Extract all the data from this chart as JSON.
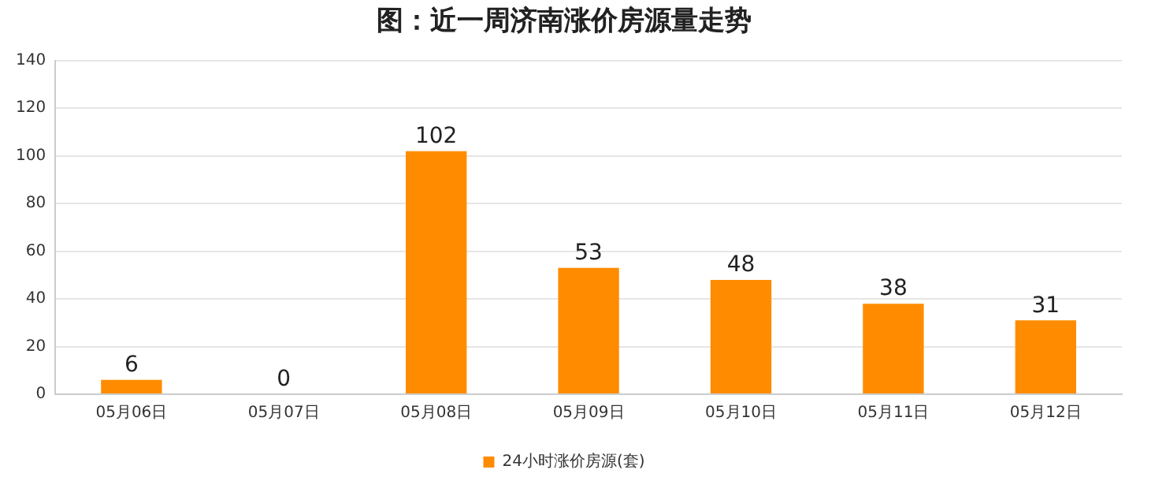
{
  "chart_data": {
    "type": "bar",
    "title": "图：近一周济南涨价房源量走势",
    "categories": [
      "05月06日",
      "05月07日",
      "05月08日",
      "05月09日",
      "05月10日",
      "05月11日",
      "05月12日"
    ],
    "series": [
      {
        "name": "24小时涨价房源(套)",
        "color": "#ff8c00",
        "values": [
          6,
          0,
          102,
          53,
          48,
          38,
          31
        ]
      }
    ],
    "ylim": [
      0,
      140
    ],
    "yticks": [
      0,
      20,
      40,
      60,
      80,
      100,
      120,
      140
    ],
    "grid": "y",
    "legend": "bottom",
    "data_labels": true
  }
}
